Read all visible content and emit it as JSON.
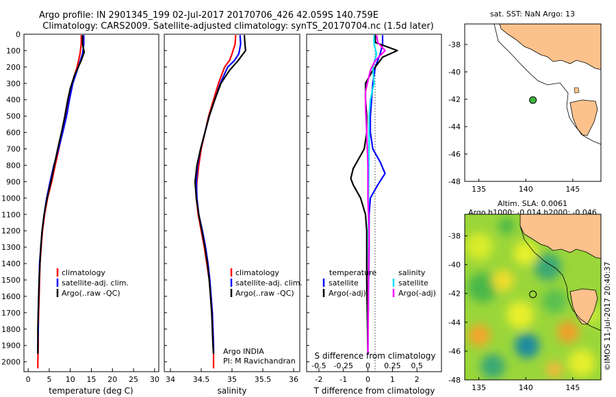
{
  "title": {
    "line1": "Argo profile: IN 2901345_199 02-Jul-2017 20170706_426 42.059S 140.759E",
    "line2": "Climatology: CARS2009. Satellite-adjusted climatology: synTS_20170704.nc (1.5d later)"
  },
  "colors": {
    "climatology": "#ff0000",
    "satellite": "#0000ff",
    "argo": "#000000",
    "sal_satellite": "#00e5ff",
    "sal_argo": "#ff00ff",
    "land": "#fdc28c",
    "marker": "#3cb43c"
  },
  "chart_data": [
    {
      "id": "temperature",
      "type": "line",
      "xlabel": "temperature (deg C)",
      "xlim": [
        -1,
        31
      ],
      "ylim": [
        2060,
        0
      ],
      "xticks": [
        0,
        5,
        10,
        15,
        20,
        25,
        30
      ],
      "yticks": [
        0,
        100,
        200,
        300,
        400,
        500,
        600,
        700,
        800,
        900,
        1000,
        1100,
        1200,
        1300,
        1400,
        1500,
        1600,
        1700,
        1800,
        1900,
        2000
      ],
      "legend": [
        "climatology",
        "satellite-adj. clim.",
        "Argo(..raw -QC)"
      ],
      "series": [
        {
          "name": "climatology",
          "color": "#ff0000",
          "points": [
            [
              12.6,
              5
            ],
            [
              12.6,
              60
            ],
            [
              12.3,
              120
            ],
            [
              11.6,
              200
            ],
            [
              10.4,
              300
            ],
            [
              9.7,
              400
            ],
            [
              9.0,
              500
            ],
            [
              8.1,
              600
            ],
            [
              7.3,
              700
            ],
            [
              6.4,
              800
            ],
            [
              5.6,
              900
            ],
            [
              4.6,
              1000
            ],
            [
              3.9,
              1100
            ],
            [
              3.4,
              1200
            ],
            [
              3.1,
              1300
            ],
            [
              2.8,
              1400
            ],
            [
              2.7,
              1500
            ],
            [
              2.6,
              1600
            ],
            [
              2.5,
              1700
            ],
            [
              2.4,
              1800
            ],
            [
              2.4,
              1900
            ],
            [
              2.3,
              2000
            ],
            [
              2.3,
              2040
            ]
          ]
        },
        {
          "name": "satellite-adj. clim.",
          "color": "#0000ff",
          "points": [
            [
              13.2,
              5
            ],
            [
              13.2,
              60
            ],
            [
              12.9,
              120
            ],
            [
              11.9,
              200
            ],
            [
              10.6,
              300
            ],
            [
              9.8,
              400
            ],
            [
              9.1,
              500
            ],
            [
              8.2,
              600
            ],
            [
              7.2,
              700
            ],
            [
              6.1,
              800
            ],
            [
              5.2,
              900
            ],
            [
              4.4,
              1000
            ],
            [
              3.8,
              1100
            ],
            [
              3.3,
              1200
            ],
            [
              3.0,
              1300
            ],
            [
              2.7,
              1400
            ],
            [
              2.6,
              1500
            ],
            [
              2.5,
              1600
            ],
            [
              2.4,
              1700
            ],
            [
              2.4,
              1800
            ],
            [
              2.3,
              1900
            ],
            [
              2.3,
              1950
            ]
          ]
        },
        {
          "name": "Argo(..raw -QC)",
          "color": "#000000",
          "points": [
            [
              12.9,
              5
            ],
            [
              12.9,
              60
            ],
            [
              13.3,
              110
            ],
            [
              12.6,
              160
            ],
            [
              11.0,
              250
            ],
            [
              10.0,
              330
            ],
            [
              9.4,
              400
            ],
            [
              8.7,
              500
            ],
            [
              7.9,
              600
            ],
            [
              7.0,
              700
            ],
            [
              6.2,
              800
            ],
            [
              5.4,
              900
            ],
            [
              4.5,
              1000
            ],
            [
              3.8,
              1100
            ],
            [
              3.3,
              1200
            ],
            [
              3.0,
              1300
            ],
            [
              2.8,
              1400
            ],
            [
              2.6,
              1500
            ],
            [
              2.5,
              1600
            ],
            [
              2.4,
              1700
            ],
            [
              2.3,
              1800
            ],
            [
              2.3,
              1900
            ],
            [
              2.3,
              1950
            ]
          ]
        }
      ]
    },
    {
      "id": "salinity",
      "type": "line",
      "xlabel": "salinity",
      "xlim": [
        33.9,
        36.1
      ],
      "ylim": [
        2060,
        0
      ],
      "xticks": [
        34,
        34.5,
        35,
        35.5,
        36
      ],
      "legend": [
        "climatology",
        "satellite-adj. clim.",
        "Argo(..raw -QC)"
      ],
      "annotation": [
        "Argo INDIA",
        "PI: M Ravichandran"
      ],
      "series": [
        {
          "name": "climatology",
          "color": "#ff0000",
          "points": [
            [
              35.06,
              5
            ],
            [
              35.05,
              60
            ],
            [
              35.0,
              120
            ],
            [
              34.96,
              160
            ],
            [
              34.88,
              200
            ],
            [
              34.78,
              300
            ],
            [
              34.7,
              400
            ],
            [
              34.62,
              500
            ],
            [
              34.56,
              600
            ],
            [
              34.5,
              700
            ],
            [
              34.46,
              800
            ],
            [
              34.43,
              900
            ],
            [
              34.42,
              1000
            ],
            [
              34.45,
              1100
            ],
            [
              34.5,
              1200
            ],
            [
              34.55,
              1300
            ],
            [
              34.59,
              1400
            ],
            [
              34.63,
              1500
            ],
            [
              34.66,
              1600
            ],
            [
              34.68,
              1700
            ],
            [
              34.69,
              1800
            ],
            [
              34.7,
              1900
            ],
            [
              34.7,
              2040
            ]
          ]
        },
        {
          "name": "satellite-adj. clim.",
          "color": "#0000ff",
          "points": [
            [
              35.13,
              5
            ],
            [
              35.14,
              60
            ],
            [
              35.11,
              120
            ],
            [
              35.04,
              160
            ],
            [
              34.93,
              200
            ],
            [
              34.81,
              300
            ],
            [
              34.72,
              400
            ],
            [
              34.63,
              500
            ],
            [
              34.56,
              600
            ],
            [
              34.49,
              700
            ],
            [
              34.44,
              800
            ],
            [
              34.42,
              900
            ],
            [
              34.43,
              1000
            ],
            [
              34.46,
              1100
            ],
            [
              34.52,
              1200
            ],
            [
              34.57,
              1300
            ],
            [
              34.61,
              1400
            ],
            [
              34.64,
              1500
            ],
            [
              34.66,
              1600
            ],
            [
              34.68,
              1700
            ],
            [
              34.69,
              1800
            ],
            [
              34.7,
              1900
            ],
            [
              34.7,
              1950
            ]
          ]
        },
        {
          "name": "Argo(..raw -QC)",
          "color": "#000000",
          "points": [
            [
              35.2,
              5
            ],
            [
              35.21,
              60
            ],
            [
              35.22,
              100
            ],
            [
              35.1,
              160
            ],
            [
              34.96,
              220
            ],
            [
              34.82,
              300
            ],
            [
              34.72,
              400
            ],
            [
              34.63,
              500
            ],
            [
              34.56,
              600
            ],
            [
              34.49,
              700
            ],
            [
              34.43,
              800
            ],
            [
              34.4,
              900
            ],
            [
              34.42,
              1000
            ],
            [
              34.46,
              1100
            ],
            [
              34.51,
              1200
            ],
            [
              34.56,
              1300
            ],
            [
              34.6,
              1400
            ],
            [
              34.63,
              1500
            ],
            [
              34.65,
              1600
            ],
            [
              34.67,
              1700
            ],
            [
              34.68,
              1800
            ],
            [
              34.69,
              1900
            ],
            [
              34.7,
              1950
            ]
          ]
        }
      ]
    },
    {
      "id": "difference",
      "type": "line",
      "xlabel": "T difference from climatology",
      "xlabel2": "S difference from climatology",
      "xlim": [
        -2.5,
        3.0
      ],
      "ylim": [
        2060,
        0
      ],
      "xticks": [
        -2,
        -1,
        0,
        1,
        2
      ],
      "xticks2": [
        -0.5,
        -0.25,
        0,
        0.25,
        0.5
      ],
      "legend_left": {
        "heading": "temperature",
        "items": [
          "satellite",
          "Argo(-adj)"
        ]
      },
      "legend_right": {
        "heading": "salinity",
        "items": [
          "satellite",
          "Argo(-adj)"
        ]
      },
      "series": [
        {
          "name": "temperature satellite",
          "color": "#0000ff",
          "points": [
            [
              0.6,
              5
            ],
            [
              0.6,
              60
            ],
            [
              0.5,
              120
            ],
            [
              0.3,
              200
            ],
            [
              0.2,
              300
            ],
            [
              0.15,
              400
            ],
            [
              0.1,
              500
            ],
            [
              0.1,
              600
            ],
            [
              0.2,
              700
            ],
            [
              0.5,
              780
            ],
            [
              0.7,
              850
            ],
            [
              0.4,
              920
            ],
            [
              0.1,
              1000
            ],
            [
              0.05,
              1100
            ],
            [
              0.05,
              1300
            ],
            [
              0.02,
              1600
            ],
            [
              0.0,
              1950
            ]
          ]
        },
        {
          "name": "temperature Argo(-adj)",
          "color": "#000000",
          "points": [
            [
              0.3,
              5
            ],
            [
              0.3,
              50
            ],
            [
              1.2,
              100
            ],
            [
              0.6,
              140
            ],
            [
              0.4,
              180
            ],
            [
              0.2,
              220
            ],
            [
              -0.1,
              300
            ],
            [
              -0.1,
              400
            ],
            [
              -0.05,
              500
            ],
            [
              -0.05,
              600
            ],
            [
              -0.15,
              700
            ],
            [
              -0.6,
              820
            ],
            [
              -0.7,
              880
            ],
            [
              -0.6,
              920
            ],
            [
              -0.3,
              1000
            ],
            [
              -0.1,
              1100
            ],
            [
              -0.05,
              1200
            ],
            [
              -0.05,
              1500
            ],
            [
              0.0,
              1950
            ]
          ]
        },
        {
          "name": "salinity satellite",
          "color": "#00e5ff",
          "points": [
            [
              0.25,
              5
            ],
            [
              0.25,
              60
            ],
            [
              0.35,
              120
            ],
            [
              0.2,
              200
            ],
            [
              0.25,
              300
            ],
            [
              0.1,
              400
            ],
            [
              0.05,
              500
            ],
            [
              0.05,
              700
            ],
            [
              0.02,
              1000
            ],
            [
              0.02,
              1500
            ],
            [
              0.0,
              1950
            ]
          ]
        },
        {
          "name": "salinity Argo(-adj)",
          "color": "#ff00ff",
          "points": [
            [
              0.35,
              5
            ],
            [
              0.4,
              50
            ],
            [
              0.7,
              100
            ],
            [
              0.3,
              160
            ],
            [
              0.1,
              220
            ],
            [
              -0.1,
              350
            ],
            [
              -0.1,
              450
            ],
            [
              -0.05,
              600
            ],
            [
              0.0,
              800
            ],
            [
              0.0,
              1000
            ],
            [
              0.05,
              1200
            ],
            [
              0.02,
              1500
            ],
            [
              0.0,
              1950
            ]
          ]
        }
      ]
    },
    {
      "id": "map-sst",
      "type": "map",
      "title": "sat. SST: NaN Argo: 13",
      "xlim": [
        133.5,
        148
      ],
      "ylim": [
        -48,
        -36.5
      ],
      "yticks": [
        -38,
        -40,
        -42,
        -44,
        -46,
        -48
      ],
      "xticks": [
        135,
        140,
        145
      ],
      "marker": [
        140.759,
        -42.059
      ]
    },
    {
      "id": "map-sla",
      "type": "heatmap",
      "title": "Altim. SLA: 0.0061",
      "subtitle": "Argo h1000: -0.014 h2000: -0.046",
      "xlim": [
        133.5,
        148
      ],
      "ylim": [
        -48,
        -36.5
      ],
      "yticks": [
        -38,
        -40,
        -42,
        -44,
        -46,
        -48
      ],
      "xticks": [
        135,
        140,
        145
      ],
      "marker": [
        140.759,
        -42.059
      ]
    }
  ],
  "credit": "©IMOS 11-Jul-2017 20:40:37"
}
